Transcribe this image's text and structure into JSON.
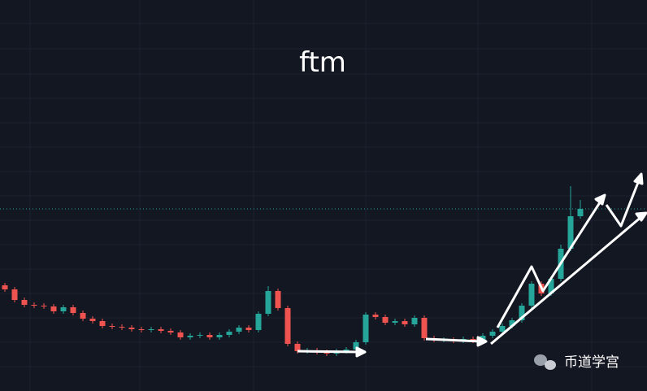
{
  "chart_data": {
    "type": "candlestick",
    "title": "ftm",
    "watermark": "币道学宫",
    "open": [
      13.0,
      12.5,
      11.2,
      10.6,
      10.5,
      10.4,
      9.8,
      10.3,
      9.6,
      8.9,
      8.6,
      8.0,
      7.9,
      7.8,
      7.6,
      7.5,
      7.6,
      7.4,
      7.2,
      6.6,
      6.8,
      6.9,
      6.6,
      6.9,
      7.3,
      7.8,
      7.5,
      9.5,
      12.3,
      10.2,
      5.8,
      4.9,
      5.0,
      4.8,
      4.6,
      4.9,
      5.1,
      6.0,
      9.4,
      9.1,
      8.4,
      8.6,
      8.2,
      9.0,
      6.5,
      6.3,
      6.3,
      6.2,
      6.4,
      6.2,
      6.8,
      7.3,
      8.0,
      8.7,
      10.5,
      13.2,
      12.0,
      13.8,
      17.5,
      21.5
    ],
    "high": [
      13.3,
      12.8,
      11.5,
      10.9,
      10.8,
      10.7,
      10.6,
      10.6,
      9.9,
      9.2,
      8.9,
      8.3,
      8.2,
      8.1,
      7.9,
      7.9,
      7.9,
      7.7,
      7.5,
      7.1,
      7.2,
      7.2,
      7.2,
      7.6,
      8.1,
      8.1,
      9.8,
      12.9,
      12.6,
      10.5,
      6.1,
      5.3,
      5.3,
      5.1,
      5.2,
      5.4,
      6.3,
      9.7,
      9.7,
      9.4,
      8.9,
      8.9,
      9.3,
      9.3,
      6.8,
      6.6,
      6.6,
      6.7,
      6.7,
      7.1,
      7.6,
      8.3,
      9.0,
      10.8,
      13.5,
      13.5,
      14.1,
      18.0,
      25.2,
      23.5
    ],
    "low": [
      12.2,
      10.9,
      10.3,
      10.2,
      10.1,
      9.5,
      9.5,
      9.3,
      8.6,
      8.3,
      7.7,
      7.6,
      7.5,
      7.3,
      7.2,
      7.2,
      7.1,
      6.9,
      6.3,
      6.3,
      6.5,
      6.3,
      6.3,
      6.6,
      7.0,
      7.2,
      7.2,
      9.2,
      9.9,
      5.5,
      4.6,
      4.6,
      4.5,
      4.3,
      4.3,
      4.6,
      4.8,
      5.7,
      8.8,
      8.1,
      8.1,
      7.9,
      7.9,
      6.2,
      6.0,
      6.0,
      5.9,
      5.9,
      5.9,
      5.9,
      6.5,
      7.0,
      7.7,
      8.4,
      10.2,
      11.7,
      11.7,
      13.5,
      17.2,
      21.2
    ],
    "close": [
      12.5,
      11.2,
      10.6,
      10.5,
      10.4,
      9.8,
      10.3,
      9.6,
      8.9,
      8.6,
      8.0,
      7.9,
      7.8,
      7.6,
      7.5,
      7.6,
      7.4,
      7.2,
      6.6,
      6.8,
      6.9,
      6.6,
      6.9,
      7.3,
      7.8,
      7.5,
      9.5,
      12.3,
      10.2,
      5.8,
      4.9,
      5.0,
      4.8,
      4.6,
      4.9,
      5.1,
      6.0,
      9.4,
      9.1,
      8.4,
      8.6,
      8.2,
      9.0,
      6.5,
      6.3,
      6.3,
      6.2,
      6.4,
      6.2,
      6.8,
      7.3,
      8.0,
      8.7,
      10.5,
      13.2,
      12.0,
      13.8,
      17.5,
      21.5,
      22.4
    ],
    "up_color": "#26a69a",
    "down_color": "#ef5350",
    "ylim": [
      0,
      48.1
    ],
    "price_line": 22.4
  }
}
